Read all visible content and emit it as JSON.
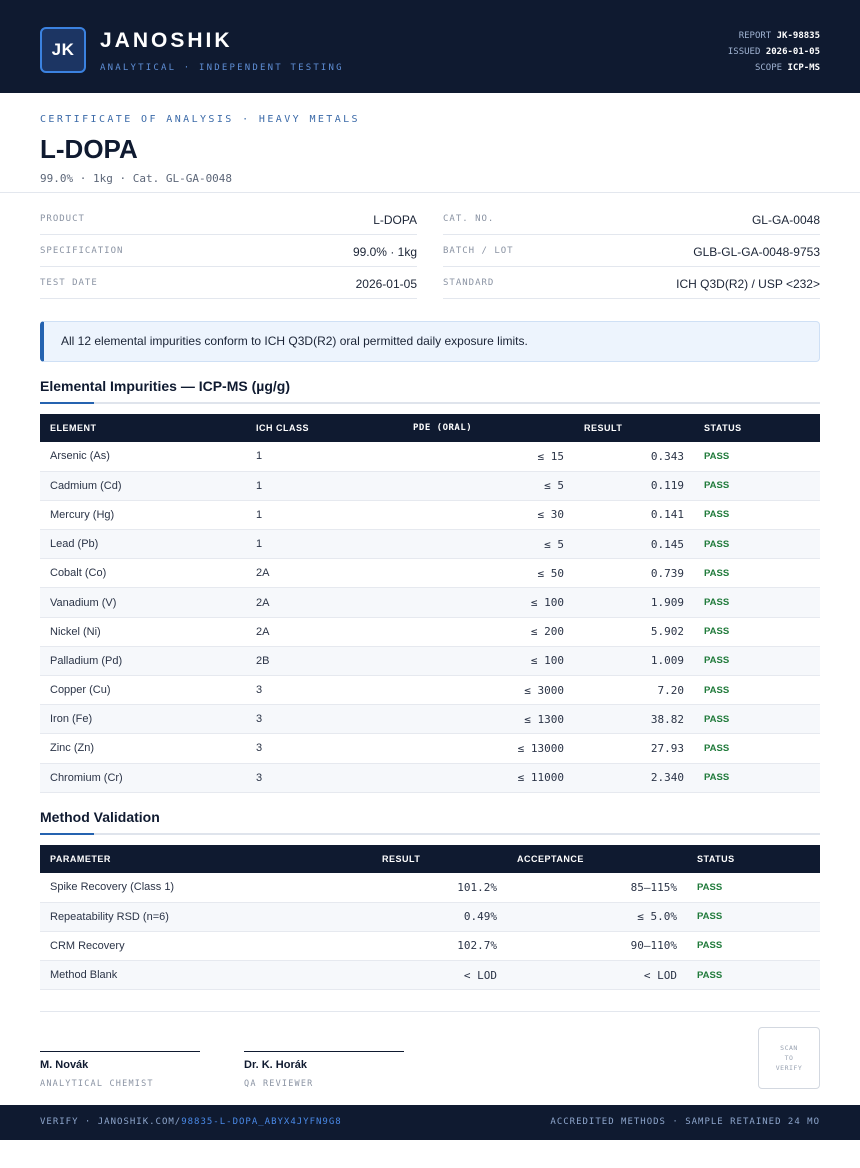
{
  "header": {
    "logo_initials": "JK",
    "brand": "JANOSHIK",
    "tagline": "ANALYTICAL · INDEPENDENT TESTING",
    "report_label": "REPORT",
    "report_value": "JK-98835",
    "issued_label": "ISSUED",
    "issued_value": "2026-01-05",
    "scope_label": "SCOPE",
    "scope_value": "ICP-MS"
  },
  "certificate": {
    "type": "CERTIFICATE OF ANALYSIS · HEAVY METALS",
    "title": "L-DOPA",
    "subline": "99.0% · 1kg  ·  Cat. GL-GA-0048"
  },
  "info": {
    "product_label": "PRODUCT",
    "product_value": "L-DOPA",
    "spec_label": "SPECIFICATION",
    "spec_value": "99.0% · 1kg",
    "date_label": "TEST DATE",
    "date_value": "2026-01-05",
    "cat_label": "CAT. NO.",
    "cat_value": "GL-GA-0048",
    "batch_label": "BATCH / LOT",
    "batch_value": "GLB-GL-GA-0048-9753",
    "standard_label": "STANDARD",
    "standard_value": "ICH Q3D(R2) / USP <232>"
  },
  "notice": "All 12 elemental impurities conform to ICH Q3D(R2) oral permitted daily exposure limits.",
  "impurities": {
    "title": "Elemental Impurities — ICP-MS (µg/g)",
    "headers": [
      "ELEMENT",
      "ICH CLASS",
      "PDE (ORAL)",
      "RESULT",
      "STATUS"
    ],
    "rows": [
      [
        "Arsenic (As)",
        "1",
        "≤ 15",
        "0.343",
        "PASS"
      ],
      [
        "Cadmium (Cd)",
        "1",
        "≤ 5",
        "0.119",
        "PASS"
      ],
      [
        "Mercury (Hg)",
        "1",
        "≤ 30",
        "0.141",
        "PASS"
      ],
      [
        "Lead (Pb)",
        "1",
        "≤ 5",
        "0.145",
        "PASS"
      ],
      [
        "Cobalt (Co)",
        "2A",
        "≤ 50",
        "0.739",
        "PASS"
      ],
      [
        "Vanadium (V)",
        "2A",
        "≤ 100",
        "1.909",
        "PASS"
      ],
      [
        "Nickel (Ni)",
        "2A",
        "≤ 200",
        "5.902",
        "PASS"
      ],
      [
        "Palladium (Pd)",
        "2B",
        "≤ 100",
        "1.009",
        "PASS"
      ],
      [
        "Copper (Cu)",
        "3",
        "≤ 3000",
        "7.20",
        "PASS"
      ],
      [
        "Iron (Fe)",
        "3",
        "≤ 1300",
        "38.82",
        "PASS"
      ],
      [
        "Zinc (Zn)",
        "3",
        "≤ 13000",
        "27.93",
        "PASS"
      ],
      [
        "Chromium (Cr)",
        "3",
        "≤ 11000",
        "2.340",
        "PASS"
      ]
    ]
  },
  "validation": {
    "title": "Method Validation",
    "headers": [
      "PARAMETER",
      "RESULT",
      "ACCEPTANCE",
      "STATUS"
    ],
    "rows": [
      [
        "Spike Recovery (Class 1)",
        "101.2%",
        "85–115%",
        "PASS"
      ],
      [
        "Repeatability RSD (n=6)",
        "0.49%",
        "≤ 5.0%",
        "PASS"
      ],
      [
        "CRM Recovery",
        "102.7%",
        "90–110%",
        "PASS"
      ],
      [
        "Method Blank",
        "< LOD",
        "< LOD",
        "PASS"
      ]
    ]
  },
  "signatures": [
    {
      "name": "M. Novák",
      "role": "ANALYTICAL CHEMIST"
    },
    {
      "name": "Dr. K. Horák",
      "role": "QA REVIEWER"
    }
  ],
  "qr": {
    "line1": "SCAN",
    "line2": "TO",
    "line3": "VERIFY"
  },
  "footer": {
    "verify_prefix": "VERIFY · JANOSHIK.COM/",
    "verify_link": "98835-L-DOPA_ABYX4JYFN9G8",
    "right": "ACCREDITED METHODS · SAMPLE RETAINED 24 MO"
  },
  "colors": {
    "navy": "#0f1a30",
    "accent_blue": "#2563b0",
    "pass_green": "#1f7a3a"
  }
}
